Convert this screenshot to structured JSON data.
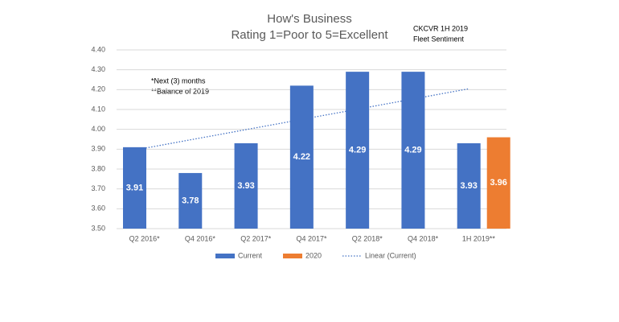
{
  "chart_data": {
    "type": "bar",
    "title": "How's Business",
    "subtitle": "Rating 1=Poor to 5=Excellent",
    "annotations": [
      "CKCVR 1H 2019",
      "Fleet Sentiment",
      "*Next (3) months",
      "**Balance of 2019"
    ],
    "categories": [
      "Q2 2016*",
      "Q4 2016*",
      "Q2 2017*",
      "Q4 2017*",
      "Q2 2018*",
      "Q4 2018*",
      "1H 2019**"
    ],
    "series": [
      {
        "name": "Current",
        "color": "#4472c4",
        "values": [
          3.91,
          3.78,
          3.93,
          4.22,
          4.29,
          4.29,
          3.93
        ]
      },
      {
        "name": "2020",
        "color": "#ed7d31",
        "values": [
          null,
          null,
          null,
          null,
          null,
          null,
          3.96
        ]
      }
    ],
    "trendline": {
      "name": "Linear (Current)",
      "type": "linear",
      "series": 0,
      "color": "#4472c4"
    },
    "ylim": [
      3.5,
      4.4
    ],
    "yticks": [
      {
        "value": 3.5,
        "label": "3.50"
      },
      {
        "value": 3.6,
        "label": "3.60"
      },
      {
        "value": 3.7,
        "label": "3.70"
      },
      {
        "value": 3.8,
        "label": "3.80"
      },
      {
        "value": 3.9,
        "label": "3.90"
      },
      {
        "value": 4.0,
        "label": "4.00"
      },
      {
        "value": 4.1,
        "label": "4.10"
      },
      {
        "value": 4.2,
        "label": "4.20"
      },
      {
        "value": 4.3,
        "label": "4.30"
      },
      {
        "value": 4.4,
        "label": "4.40"
      }
    ],
    "grid": true,
    "legend": "bottom"
  }
}
